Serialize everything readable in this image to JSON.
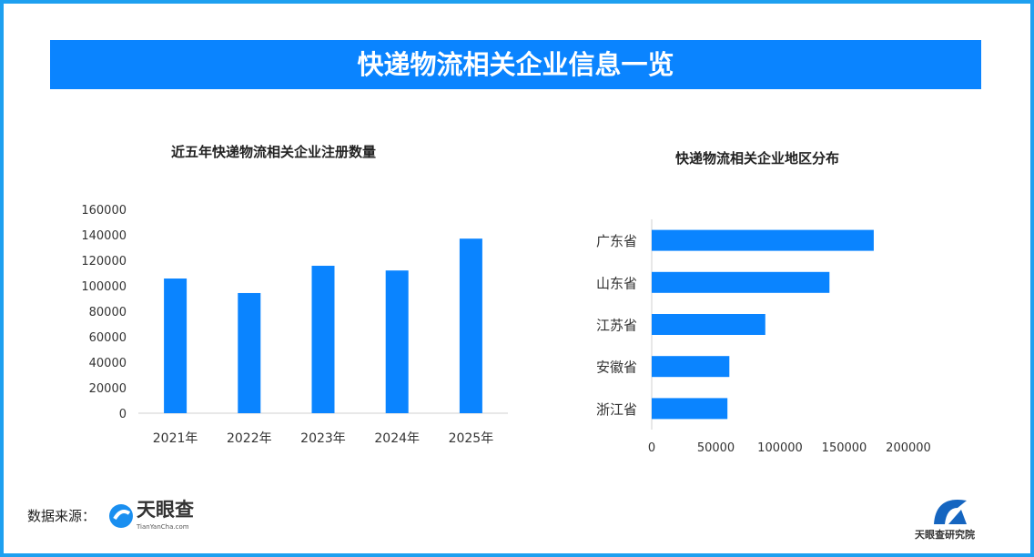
{
  "header": {
    "title": "快递物流相关企业信息一览"
  },
  "chart_data": [
    {
      "type": "bar",
      "title": "近五年快递物流相关企业注册数量",
      "categories": [
        "2021年",
        "2022年",
        "2023年",
        "2024年",
        "2025年"
      ],
      "values": [
        105700,
        94300,
        115700,
        112000,
        137000
      ],
      "ylim": [
        0,
        160000
      ],
      "yticks": [
        0,
        20000,
        40000,
        60000,
        80000,
        100000,
        120000,
        140000,
        160000
      ],
      "color": "#0a84ff",
      "grid": false
    },
    {
      "type": "bar",
      "orientation": "horizontal",
      "title": "快递物流相关企业地区分布",
      "categories": [
        "广东省",
        "山东省",
        "江苏省",
        "安徽省",
        "浙江省"
      ],
      "values": [
        173000,
        138500,
        88500,
        60500,
        59000
      ],
      "xlim": [
        0,
        200000
      ],
      "xticks": [
        0,
        50000,
        100000,
        150000,
        200000
      ],
      "color": "#0a84ff",
      "grid": false
    }
  ],
  "footer": {
    "source_label": "数据来源：",
    "source_logo": "天眼查",
    "source_logo_sub": "TianYanCha.com",
    "institute": "天眼查研究院"
  }
}
